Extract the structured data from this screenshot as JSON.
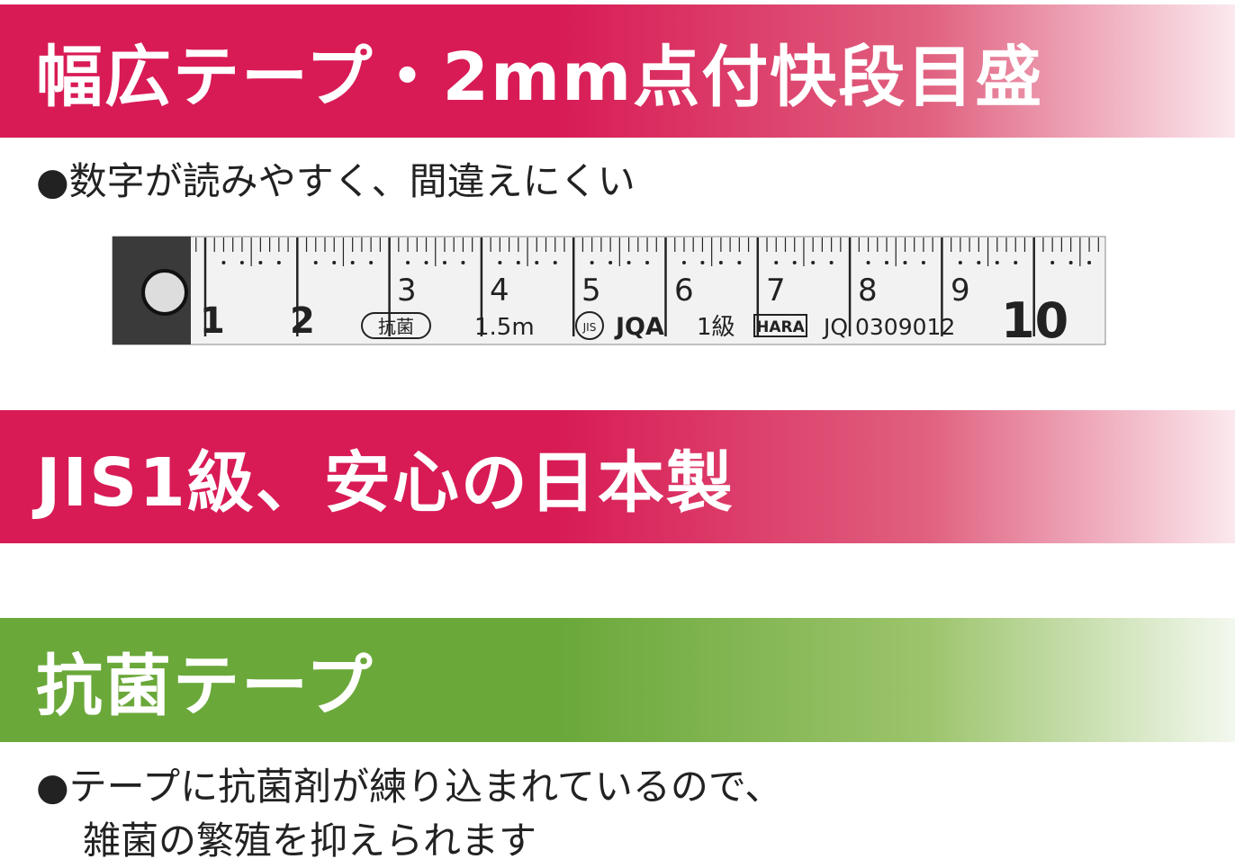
{
  "banners": [
    {
      "title": "幅広テープ・2mm点付快段目盛"
    },
    {
      "title": "JIS1級、安心の日本製"
    },
    {
      "title": "抗菌テープ"
    }
  ],
  "bullets": [
    {
      "lines": [
        "●数字が読みやすく、間違えにくい"
      ]
    },
    {
      "lines": [
        "●テープに抗菌剤が練り込まれているので、",
        "雑菌の繁殖を抑えられます"
      ]
    }
  ],
  "tape": {
    "numbers": [
      1,
      2,
      3,
      4,
      5,
      6,
      7,
      8,
      9,
      10
    ],
    "mark": "抗菌",
    "length": "1.5m",
    "jis": "JIS",
    "jqa": "JQA",
    "grade": "1級",
    "maker": "HARA",
    "code": "JQ 0309012"
  }
}
